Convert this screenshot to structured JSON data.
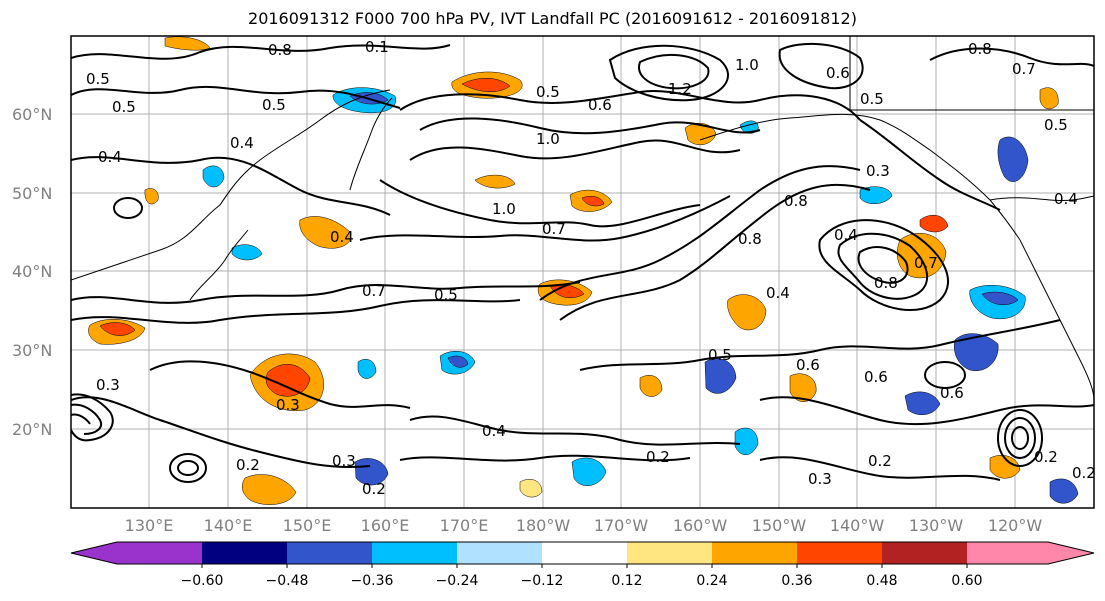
{
  "title": "2016091312 F000 700 hPa PV, IVT Landfall PC (2016091612 - 2016091812)",
  "map": {
    "lat_labels": [
      "60°N",
      "50°N",
      "40°N",
      "30°N",
      "20°N"
    ],
    "lon_labels": [
      "130°E",
      "140°E",
      "150°E",
      "160°E",
      "170°E",
      "180°W",
      "170°W",
      "160°W",
      "150°W",
      "140°W",
      "130°W",
      "120°W"
    ],
    "contour_labels": [
      "0.5",
      "0.5",
      "0.4",
      "0.5",
      "0.8",
      "0.1",
      "0.5",
      "0.6",
      "1.0",
      "1.2",
      "1.0",
      "0.6",
      "0.5",
      "0.8",
      "0.7",
      "0.5",
      "0.4",
      "1.0",
      "0.7",
      "0.4",
      "0.7",
      "0.5",
      "0.8",
      "0.8",
      "0.4",
      "0.4",
      "0.3",
      "0.8",
      "0.7",
      "0.4",
      "0.5",
      "0.6",
      "0.6",
      "0.6",
      "0.3",
      "0.2",
      "0.3",
      "0.2",
      "0.4",
      "0.2",
      "0.3",
      "0.2",
      "0.2",
      "0.3",
      "0.2"
    ]
  },
  "colorbar": {
    "tick_labels": [
      "−0.60",
      "−0.48",
      "−0.36",
      "−0.24",
      "−0.12",
      "0.12",
      "0.24",
      "0.36",
      "0.48",
      "0.60"
    ],
    "colors": [
      "#9933cc",
      "#000080",
      "#3355cc",
      "#00bfff",
      "#b0e2ff",
      "#ffffff",
      "#ffe680",
      "#ffa500",
      "#ff4500",
      "#b22222",
      "#ff88aa"
    ]
  }
}
